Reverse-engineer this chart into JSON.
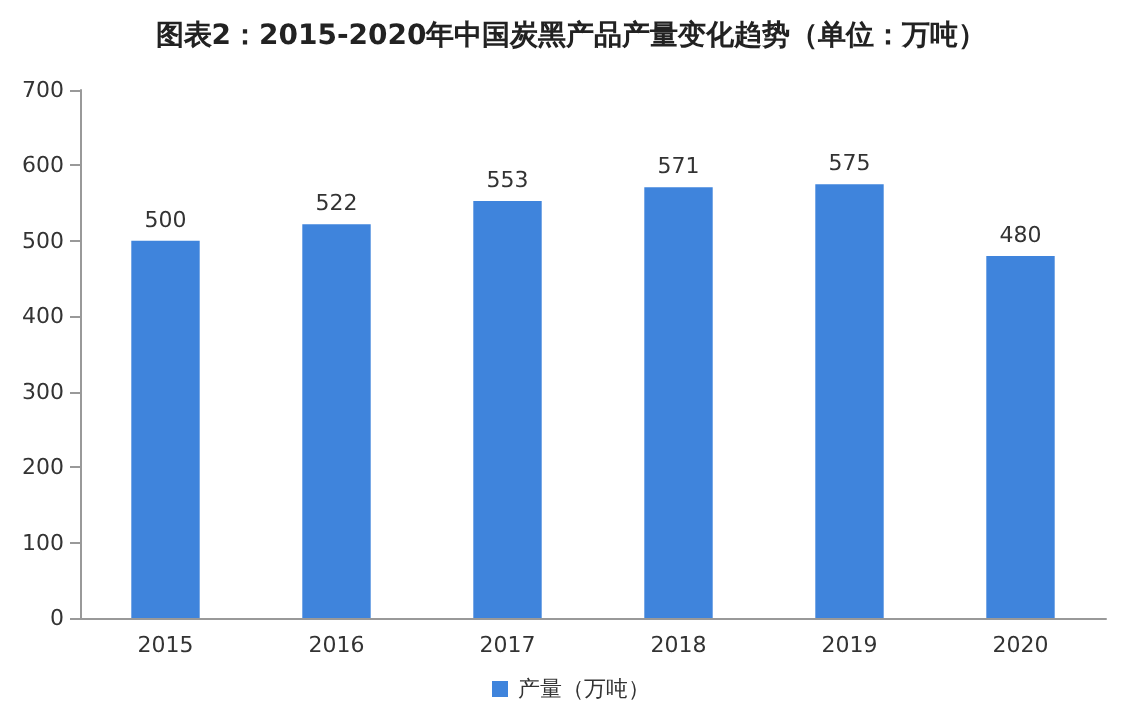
{
  "chart_data": {
    "type": "bar",
    "title": "图表2：2015-2020年中国炭黑产品产量变化趋势（单位：万吨）",
    "categories": [
      "2015",
      "2016",
      "2017",
      "2018",
      "2019",
      "2020"
    ],
    "series": [
      {
        "name": "产量（万吨）",
        "color": "#3f84dc",
        "values": [
          500,
          522,
          553,
          571,
          575,
          480
        ]
      }
    ],
    "ylim": [
      0,
      700
    ],
    "yticks": [
      0,
      100,
      200,
      300,
      400,
      500,
      600,
      700
    ],
    "data_labels": true,
    "grid": false,
    "legend": "bottom"
  }
}
